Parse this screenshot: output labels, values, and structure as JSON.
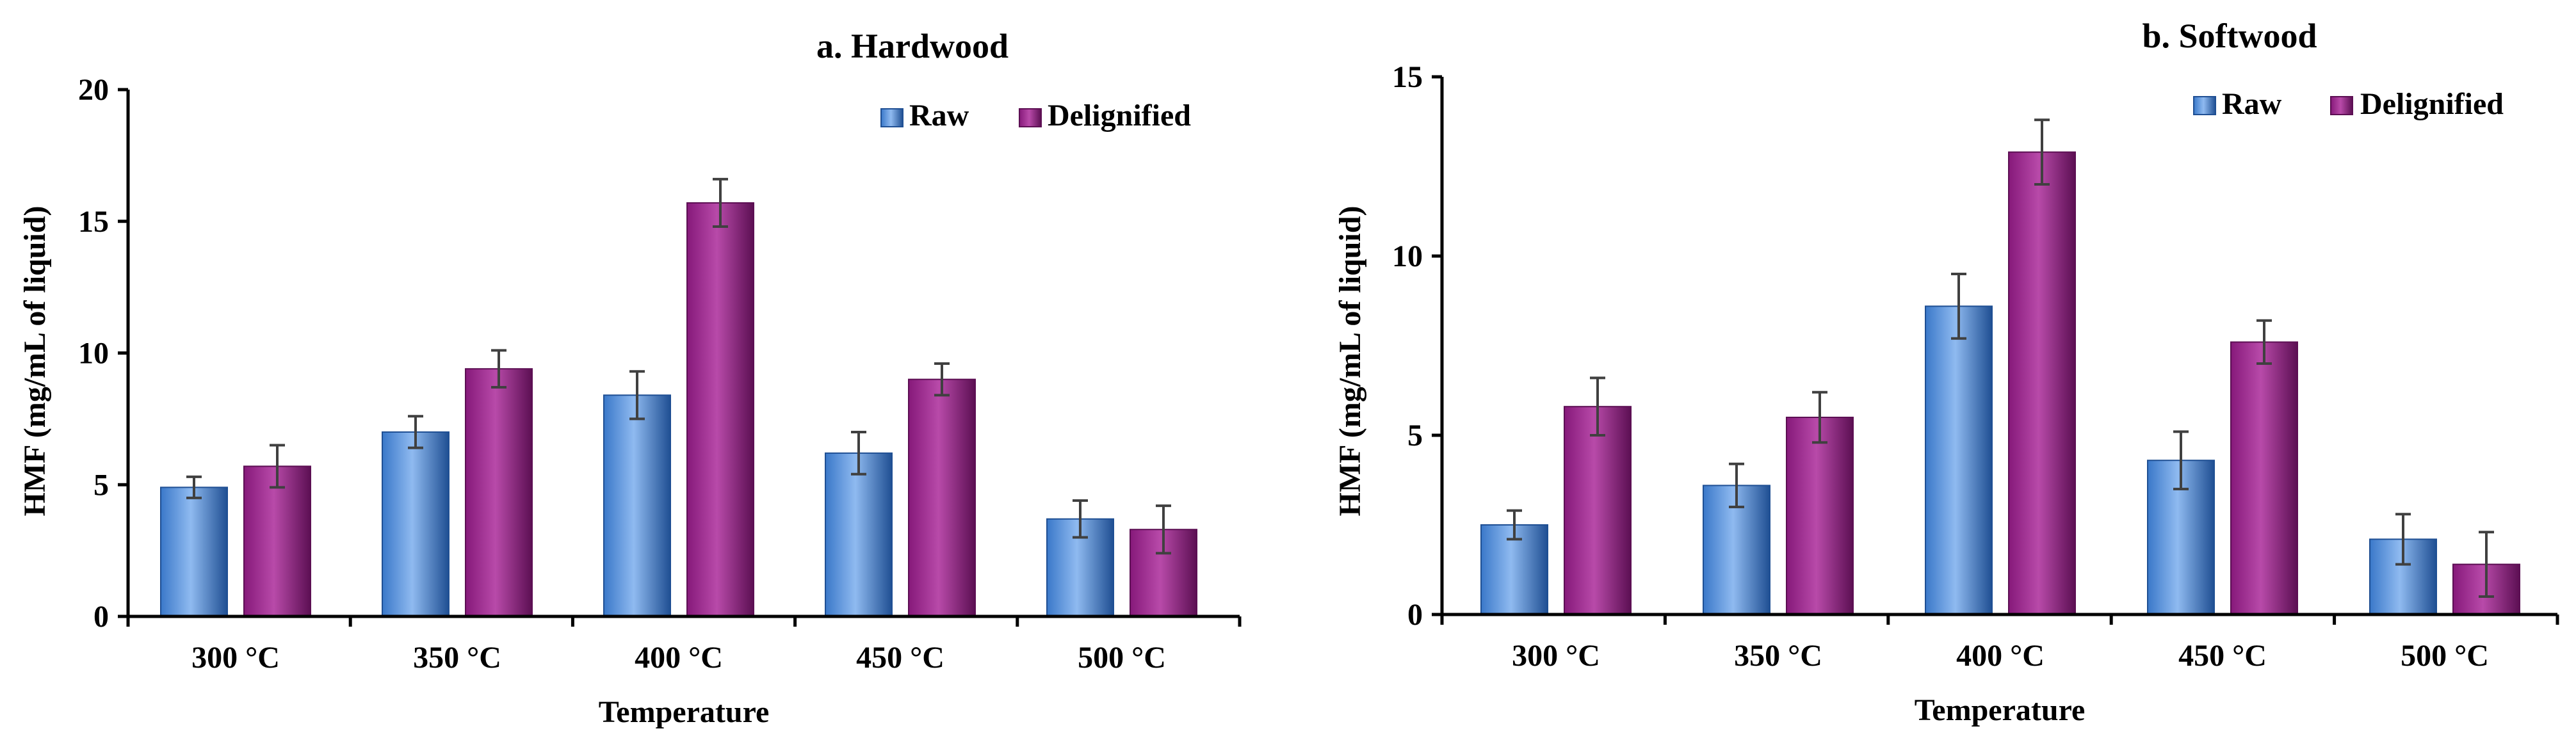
{
  "colors": {
    "raw": "#3a78c9",
    "raw_light": "#8fbaf0",
    "raw_dark": "#1f4f93",
    "delignified": "#86197a",
    "delignified_light": "#b84aa9",
    "delignified_dark": "#5c0f53",
    "axis": "#000000"
  },
  "chart_data": [
    {
      "type": "bar",
      "title": "a. Hardwood",
      "xlabel": "Temperature",
      "ylabel": "HMF (mg/mL of liquid)",
      "categories": [
        "300 °C",
        "350 °C",
        "400 °C",
        "450 °C",
        "500 °C"
      ],
      "ylim": [
        0,
        20
      ],
      "yticks": [
        0,
        5,
        10,
        15,
        20
      ],
      "legend_position": "top-right",
      "series": [
        {
          "name": "Raw",
          "color_key": "raw",
          "values": [
            4.9,
            7.0,
            8.4,
            6.2,
            3.7
          ],
          "errors": [
            0.4,
            0.6,
            0.9,
            0.8,
            0.7
          ]
        },
        {
          "name": "Delignified",
          "color_key": "delignified",
          "values": [
            5.7,
            9.4,
            15.7,
            9.0,
            3.3
          ],
          "errors": [
            0.8,
            0.7,
            0.9,
            0.6,
            0.9
          ]
        }
      ]
    },
    {
      "type": "bar",
      "title": "b. Softwood",
      "xlabel": "Temperature",
      "ylabel": "HMF (mg/mL of liquid)",
      "categories": [
        "300 °C",
        "350 °C",
        "400 °C",
        "450 °C",
        "500 °C"
      ],
      "ylim": [
        0,
        15
      ],
      "yticks": [
        0,
        5,
        10,
        15
      ],
      "legend_position": "top-right",
      "series": [
        {
          "name": "Raw",
          "color_key": "raw",
          "values": [
            2.5,
            3.6,
            8.6,
            4.3,
            2.1
          ],
          "errors": [
            0.4,
            0.6,
            0.9,
            0.8,
            0.7
          ]
        },
        {
          "name": "Delignified",
          "color_key": "delignified",
          "values": [
            5.8,
            5.5,
            12.9,
            7.6,
            1.4
          ],
          "errors": [
            0.8,
            0.7,
            0.9,
            0.6,
            0.9
          ]
        }
      ]
    }
  ]
}
